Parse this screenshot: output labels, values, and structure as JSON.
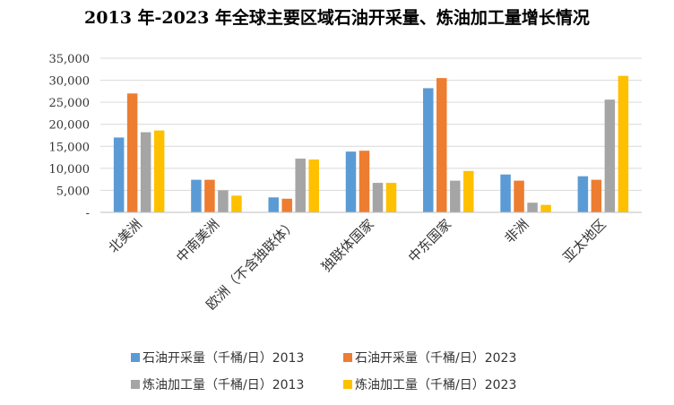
{
  "chart_data": {
    "type": "bar",
    "title": "2013 年-2023 年全球主要区域石油开采量、炼油加工量增长情况",
    "categories": [
      "北美洲",
      "中南美洲",
      "欧洲（不含独联体）",
      "独联体国家",
      "中东国家",
      "非洲",
      "亚太地区"
    ],
    "ylim": [
      0,
      35000
    ],
    "yticks": [
      0,
      5000,
      10000,
      15000,
      20000,
      25000,
      30000,
      35000
    ],
    "ytick_labels": [
      "-",
      "5,000",
      "10,000",
      "15,000",
      "20,000",
      "25,000",
      "30,000",
      "35,000"
    ],
    "grid": true,
    "legend_position": "bottom",
    "series": [
      {
        "name": "石油开采量（千桶/日）2013",
        "color": "#5B9BD5",
        "values": [
          17000,
          7400,
          3400,
          13800,
          28200,
          8600,
          8200
        ]
      },
      {
        "name": "石油开采量（千桶/日）2023",
        "color": "#ED7D31",
        "values": [
          27000,
          7400,
          3100,
          14000,
          30500,
          7200,
          7400
        ]
      },
      {
        "name": "炼油加工量（千桶/日）2013",
        "color": "#A5A5A5",
        "values": [
          18200,
          5000,
          12200,
          6700,
          7200,
          2200,
          25600
        ]
      },
      {
        "name": "炼油加工量（千桶/日）2023",
        "color": "#FFC000",
        "values": [
          18600,
          3800,
          12000,
          6700,
          9400,
          1700,
          31000
        ]
      }
    ]
  }
}
